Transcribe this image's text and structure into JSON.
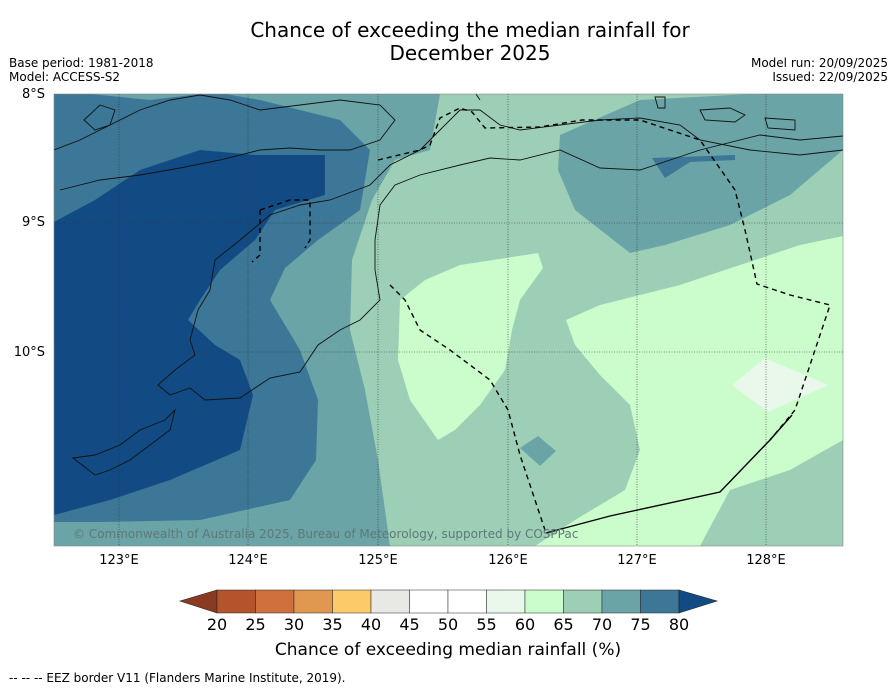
{
  "title_line1": "Chance of exceeding the median rainfall for",
  "title_line2": "December 2025",
  "base_period": "Base period: 1981-2018",
  "model": "Model: ACCESS-S2",
  "model_run": "Model run: 20/09/2025",
  "issued": "Issued: 22/09/2025",
  "lat_labels": [
    "8°S",
    "9°S",
    "10°S"
  ],
  "lon_labels": [
    "123°E",
    "124°E",
    "125°E",
    "126°E",
    "127°E",
    "128°E"
  ],
  "copyright": "© Commonwealth of Australia 2025, Bureau of Meteorology, supported by COSPPac",
  "colorbar": {
    "ticks": [
      "20",
      "25",
      "30",
      "35",
      "40",
      "45",
      "50",
      "55",
      "60",
      "65",
      "70",
      "75",
      "80"
    ],
    "title": "Chance of exceeding median rainfall (%)",
    "colors": [
      "#8b3a22",
      "#b5532c",
      "#d0703c",
      "#e09850",
      "#fdca6a",
      "#e8e8e4",
      "#ffffff",
      "#ffffff",
      "#e9f8ea",
      "#cbfccb",
      "#9ccfb5",
      "#6aa4a6",
      "#3c7797",
      "#124b83"
    ]
  },
  "footer": "--  --  -- EEZ border V11 (Flanders Marine Institute, 2019)."
}
